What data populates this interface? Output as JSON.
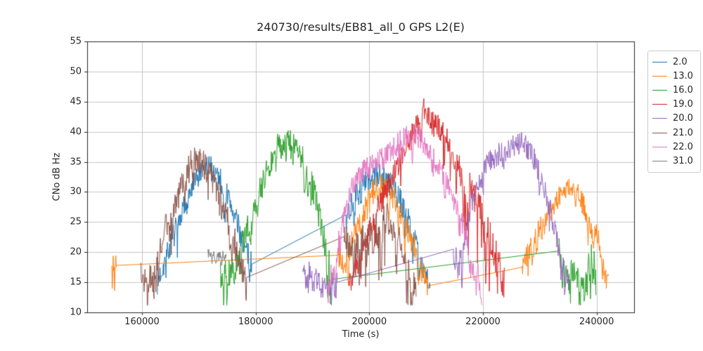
{
  "chart_data": {
    "type": "line",
    "title": "240730/results/EB81_all_0 GPS L2(E)",
    "xlabel": "Time (s)",
    "ylabel": "CNo dB Hz",
    "xlim": [
      150350,
      246600
    ],
    "ylim": [
      10,
      55
    ],
    "x_ticks": [
      160000,
      180000,
      200000,
      220000,
      240000
    ],
    "y_ticks": [
      10,
      15,
      20,
      25,
      30,
      35,
      40,
      45,
      50,
      55
    ],
    "grid": true,
    "grid_color": "#c6c6c6",
    "axis_color": "#262626",
    "legend_position": "outside-right",
    "series": [
      {
        "label": "2.0",
        "color": "#1f77b4",
        "parts": [
          {
            "type": "n",
            "noise": 2.1,
            "sp": 0.05,
            "p": [
              [
                162700,
                15
              ],
              [
                164000,
                18.5
              ],
              [
                166000,
                24
              ],
              [
                168000,
                29
              ],
              [
                170000,
                32.5
              ],
              [
                171600,
                34.4
              ],
              [
                173200,
                33
              ],
              [
                175000,
                29.5
              ],
              [
                176500,
                25.5
              ],
              [
                178000,
                21
              ],
              [
                179300,
                18
              ]
            ]
          },
          {
            "type": "l",
            "p": [
              [
                179300,
                18
              ],
              [
                195900,
                26.2
              ]
            ]
          },
          {
            "type": "n",
            "noise": 2.2,
            "sp": 0.05,
            "p": [
              [
                195900,
                26.2
              ],
              [
                197500,
                29
              ],
              [
                199500,
                31.5
              ],
              [
                201300,
                33
              ],
              [
                203500,
                31.5
              ],
              [
                205500,
                28.5
              ],
              [
                207500,
                23.5
              ],
              [
                209000,
                19
              ],
              [
                210700,
                14.8
              ]
            ]
          }
        ]
      },
      {
        "label": "13.0",
        "color": "#ff7f0e",
        "parts": [
          {
            "type": "n",
            "noise": 1.9,
            "sp": 0.15,
            "p": [
              [
                154600,
                17.2
              ],
              [
                155000,
                17.8
              ],
              [
                155500,
                17.8
              ]
            ]
          },
          {
            "type": "l",
            "p": [
              [
                155500,
                17.8
              ],
              [
                194600,
                19.5
              ]
            ]
          },
          {
            "type": "n",
            "noise": 2.3,
            "sp": 0.06,
            "p": [
              [
                194600,
                19.5
              ],
              [
                195600,
                16.5
              ],
              [
                197000,
                22
              ],
              [
                198800,
                26
              ],
              [
                200800,
                30
              ],
              [
                202000,
                31.5
              ],
              [
                203800,
                29.5
              ],
              [
                205500,
                27
              ],
              [
                207300,
                22.5
              ],
              [
                209000,
                18
              ],
              [
                210300,
                14.4
              ]
            ]
          },
          {
            "type": "l",
            "p": [
              [
                210300,
                14.4
              ],
              [
                226900,
                17.5
              ]
            ]
          },
          {
            "type": "n",
            "noise": 1.8,
            "sp": 0.06,
            "p": [
              [
                226900,
                17.5
              ],
              [
                228500,
                21
              ],
              [
                230200,
                24.5
              ],
              [
                232000,
                27.5
              ],
              [
                233700,
                29.5
              ],
              [
                235300,
                31
              ],
              [
                236800,
                29.5
              ],
              [
                238300,
                26.5
              ],
              [
                239300,
                23.5
              ],
              [
                240100,
                23.8
              ],
              [
                240900,
                19
              ],
              [
                241600,
                16
              ],
              [
                242100,
                14.3
              ]
            ]
          }
        ]
      },
      {
        "label": "16.0",
        "color": "#2ca02c",
        "parts": [
          {
            "type": "n",
            "noise": 2.4,
            "sp": 0.07,
            "p": [
              [
                173800,
                16
              ],
              [
                175200,
                16.5
              ],
              [
                176600,
                18
              ],
              [
                178200,
                23
              ],
              [
                180200,
                29
              ],
              [
                182200,
                34
              ],
              [
                183800,
                37.5
              ],
              [
                186000,
                38
              ],
              [
                187800,
                36.5
              ],
              [
                189500,
                32.5
              ],
              [
                191000,
                27
              ],
              [
                192300,
                21
              ],
              [
                193500,
                15.5
              ]
            ]
          },
          {
            "type": "l",
            "p": [
              [
                193500,
                15.5
              ],
              [
                233400,
                20.2
              ]
            ]
          },
          {
            "type": "n",
            "noise": 2.3,
            "sp": 0.1,
            "p": [
              [
                233400,
                20.2
              ],
              [
                234300,
                17.5
              ],
              [
                235300,
                16.8
              ],
              [
                236400,
                16.2
              ],
              [
                237500,
                16
              ],
              [
                238400,
                17
              ],
              [
                239000,
                19.5
              ],
              [
                239400,
                20.5
              ],
              [
                239900,
                16.5
              ]
            ]
          }
        ]
      },
      {
        "label": "19.0",
        "color": "#d62728",
        "parts": [
          {
            "type": "n",
            "noise": 2.2,
            "sp": 0.03,
            "p": [
              [
                196400,
                14.5
              ],
              [
                197500,
                17.5
              ],
              [
                198800,
                20
              ],
              [
                200500,
                25
              ],
              [
                202500,
                29.5
              ],
              [
                204500,
                33.5
              ],
              [
                206500,
                37
              ],
              [
                208300,
                41
              ],
              [
                209600,
                43.5
              ],
              [
                211000,
                41.5
              ],
              [
                212500,
                40.5
              ],
              [
                214200,
                37.5
              ],
              [
                216000,
                33.5
              ]
            ]
          },
          {
            "type": "n",
            "noise": 3.0,
            "sp": 0.14,
            "sd": 3,
            "p": [
              [
                216000,
                33.5
              ],
              [
                217500,
                30.5
              ],
              [
                219200,
                28
              ],
              [
                220500,
                24.5
              ],
              [
                221800,
                20.5
              ],
              [
                223000,
                17
              ],
              [
                223800,
                14.5
              ]
            ]
          }
        ]
      },
      {
        "label": "20.0",
        "color": "#9467bd",
        "parts": [
          {
            "type": "n",
            "noise": 1.8,
            "sp": 0.1,
            "p": [
              [
                188300,
                16.2
              ],
              [
                189500,
                16.8
              ],
              [
                191000,
                15.5
              ],
              [
                192500,
                14.8
              ],
              [
                194300,
                15
              ]
            ]
          },
          {
            "type": "l",
            "p": [
              [
                194300,
                15
              ],
              [
                214800,
                20.5
              ]
            ]
          },
          {
            "type": "n",
            "noise": 2.2,
            "sp": 0.12,
            "p": [
              [
                214800,
                20.5
              ],
              [
                215700,
                17
              ],
              [
                216800,
                22.5
              ]
            ]
          },
          {
            "type": "n",
            "noise": 1.9,
            "sp": 0.03,
            "p": [
              [
                216800,
                22.5
              ],
              [
                218000,
                28
              ],
              [
                219500,
                32
              ],
              [
                221000,
                35
              ],
              [
                223000,
                36.5
              ],
              [
                225000,
                37.5
              ],
              [
                226800,
                38.2
              ],
              [
                228200,
                37
              ],
              [
                229500,
                34.5
              ],
              [
                231000,
                30
              ],
              [
                232500,
                24.5
              ]
            ]
          },
          {
            "type": "n",
            "noise": 2.2,
            "sp": 0.12,
            "p": [
              [
                232500,
                24.5
              ],
              [
                233800,
                19
              ],
              [
                235200,
                14.8
              ]
            ]
          }
        ]
      },
      {
        "label": "21.0",
        "color": "#8c564b",
        "parts": [
          {
            "type": "n",
            "noise": 2.5,
            "sp": 0.08,
            "p": [
              [
                159800,
                16.5
              ],
              [
                160800,
                14.5
              ],
              [
                162000,
                17
              ],
              [
                163500,
                22
              ],
              [
                165500,
                27.5
              ],
              [
                167500,
                32
              ],
              [
                169200,
                35.8
              ],
              [
                170800,
                34.8
              ],
              [
                172500,
                32
              ],
              [
                174200,
                28.5
              ],
              [
                175800,
                23.5
              ],
              [
                177200,
                18.5
              ],
              [
                178400,
                15.2
              ]
            ]
          },
          {
            "type": "l",
            "p": [
              [
                178400,
                15.8
              ],
              [
                195600,
                22.6
              ]
            ]
          },
          {
            "type": "n",
            "noise": 2.7,
            "sp": 0.1,
            "sd": 2.6,
            "p": [
              [
                195600,
                22.6
              ],
              [
                197000,
                20.5
              ],
              [
                198500,
                21.5
              ],
              [
                200000,
                23
              ],
              [
                201800,
                24.8
              ],
              [
                203200,
                25.8
              ],
              [
                204500,
                23.5
              ],
              [
                205800,
                20.5
              ],
              [
                207000,
                17
              ],
              [
                208300,
                13.8
              ]
            ]
          }
        ]
      },
      {
        "label": "22.0",
        "color": "#e377c2",
        "parts": [
          {
            "type": "n",
            "noise": 2.2,
            "sp": 0.14,
            "p": [
              [
                192700,
                14
              ],
              [
                193600,
                17.5
              ],
              [
                194700,
                22
              ],
              [
                195500,
                26.5
              ]
            ]
          },
          {
            "type": "n",
            "noise": 1.9,
            "sp": 0.02,
            "p": [
              [
                195500,
                26.5
              ],
              [
                197000,
                31
              ],
              [
                199000,
                33.5
              ],
              [
                201500,
                35
              ],
              [
                203500,
                36.5
              ],
              [
                205500,
                38.5
              ],
              [
                207300,
                39.5
              ],
              [
                209000,
                39
              ],
              [
                210500,
                37
              ],
              [
                212500,
                33.5
              ],
              [
                214500,
                29.5
              ],
              [
                216000,
                26
              ],
              [
                217200,
                22.5
              ]
            ]
          },
          {
            "type": "n",
            "noise": 2.2,
            "sp": 0.14,
            "p": [
              [
                217200,
                22.5
              ],
              [
                218500,
                18
              ],
              [
                219900,
                14
              ]
            ]
          }
        ]
      },
      {
        "label": "31.0",
        "color": "#7f7f7f",
        "parts": [
          {
            "type": "n",
            "noise": 0.8,
            "sp": 0.12,
            "p": [
              [
                171600,
                19.9
              ],
              [
                172700,
                19.7
              ],
              [
                173200,
                18.9
              ],
              [
                173800,
                19.6
              ],
              [
                174800,
                19.4
              ]
            ]
          }
        ]
      }
    ]
  }
}
